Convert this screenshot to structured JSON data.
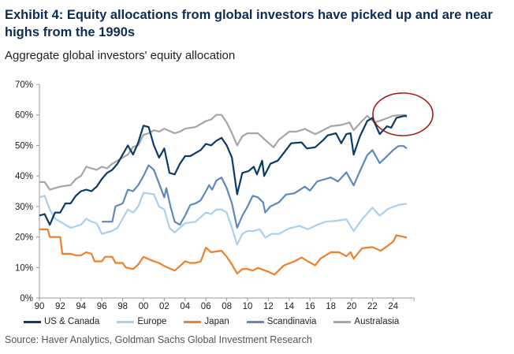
{
  "chart_data": {
    "type": "line",
    "title": "Exhibit 4: Equity allocations from global investors have picked up and are near highs from the 1990s",
    "subtitle": "Aggregate global investors' equity allocation",
    "xlabel": "",
    "ylabel": "",
    "xlim": [
      1990,
      2026
    ],
    "ylim": [
      0,
      70
    ],
    "x_ticks": [
      "90",
      "92",
      "94",
      "96",
      "98",
      "00",
      "02",
      "04",
      "06",
      "08",
      "10",
      "12",
      "14",
      "16",
      "18",
      "20",
      "22",
      "24"
    ],
    "y_ticks": [
      "0%",
      "10%",
      "20%",
      "30%",
      "40%",
      "50%",
      "60%",
      "70%"
    ],
    "grid": false,
    "legend_position": "bottom",
    "annotation": "circle around latest US & Canada and Australasia values near 60%",
    "series": [
      {
        "name": "US & Canada",
        "color": "#0b3a66",
        "points": [
          [
            1990,
            27
          ],
          [
            1990.5,
            27.5
          ],
          [
            1991,
            24
          ],
          [
            1991.5,
            28
          ],
          [
            1992,
            28
          ],
          [
            1992.5,
            31
          ],
          [
            1993,
            31
          ],
          [
            1993.5,
            33.5
          ],
          [
            1994,
            35
          ],
          [
            1994.5,
            35.5
          ],
          [
            1995,
            35
          ],
          [
            1995.5,
            36.5
          ],
          [
            1996,
            39
          ],
          [
            1996.5,
            41
          ],
          [
            1997,
            42
          ],
          [
            1997.5,
            44
          ],
          [
            1998,
            47
          ],
          [
            1998.5,
            50
          ],
          [
            1999,
            47
          ],
          [
            1999.5,
            51
          ],
          [
            2000,
            56.5
          ],
          [
            2000.5,
            56
          ],
          [
            2001,
            50
          ],
          [
            2001.5,
            46
          ],
          [
            2002,
            49
          ],
          [
            2002.5,
            41
          ],
          [
            2003,
            40.5
          ],
          [
            2003.5,
            44
          ],
          [
            2004,
            46.5
          ],
          [
            2004.5,
            46.5
          ],
          [
            2005,
            47.5
          ],
          [
            2005.5,
            48.5
          ],
          [
            2006,
            50.5
          ],
          [
            2006.5,
            50
          ],
          [
            2007,
            51.5
          ],
          [
            2007.5,
            52.5
          ],
          [
            2008,
            50
          ],
          [
            2008.5,
            46
          ],
          [
            2009,
            34
          ],
          [
            2009.5,
            41
          ],
          [
            2010.1,
            41.6
          ],
          [
            2010.6,
            43
          ],
          [
            2010.9,
            40.5
          ],
          [
            2011.4,
            45
          ],
          [
            2011.6,
            40
          ],
          [
            2012.2,
            44
          ],
          [
            2012.9,
            45
          ],
          [
            2013.7,
            48.5
          ],
          [
            2014.2,
            50.7
          ],
          [
            2015.2,
            51
          ],
          [
            2015.7,
            49
          ],
          [
            2016.5,
            49.4
          ],
          [
            2017.2,
            51.5
          ],
          [
            2017.7,
            53.3
          ],
          [
            2018.5,
            54
          ],
          [
            2019,
            50.7
          ],
          [
            2019.5,
            53.7
          ],
          [
            2019.9,
            54
          ],
          [
            2020.2,
            47
          ],
          [
            2020.8,
            53
          ],
          [
            2021.5,
            58
          ],
          [
            2022,
            59
          ],
          [
            2022.7,
            53.7
          ],
          [
            2023.4,
            56.3
          ],
          [
            2023.8,
            55.8
          ],
          [
            2024.3,
            59
          ],
          [
            2025.1,
            59.7
          ],
          [
            2025.3,
            59.5
          ]
        ]
      },
      {
        "name": "Europe",
        "color": "#a9d0ef",
        "points": [
          [
            1990,
            33
          ],
          [
            1990.5,
            33.5
          ],
          [
            1991,
            29
          ],
          [
            1991.5,
            26
          ],
          [
            1992,
            25
          ],
          [
            1992.5,
            24
          ],
          [
            1993,
            23
          ],
          [
            1994,
            24
          ],
          [
            1994.5,
            26
          ],
          [
            1995,
            25
          ],
          [
            1995.5,
            24.5
          ],
          [
            1996,
            21
          ],
          [
            1997,
            22
          ],
          [
            1997.5,
            23
          ],
          [
            1998,
            26
          ],
          [
            1998.5,
            29
          ],
          [
            1999,
            28
          ],
          [
            1999.5,
            30
          ],
          [
            2000,
            34.5
          ],
          [
            2001,
            34
          ],
          [
            2001.5,
            30
          ],
          [
            2002,
            29
          ],
          [
            2002.5,
            23
          ],
          [
            2003,
            21.5
          ],
          [
            2004,
            24.5
          ],
          [
            2005,
            25
          ],
          [
            2006,
            28
          ],
          [
            2006.5,
            27.5
          ],
          [
            2007,
            29
          ],
          [
            2007.5,
            29
          ],
          [
            2008,
            28
          ],
          [
            2008.5,
            23
          ],
          [
            2009,
            17.5
          ],
          [
            2009.5,
            21
          ],
          [
            2010,
            22
          ],
          [
            2010.5,
            21.9
          ],
          [
            2011.2,
            22.5
          ],
          [
            2011.7,
            19.8
          ],
          [
            2012.3,
            21
          ],
          [
            2013,
            21
          ],
          [
            2014,
            22.8
          ],
          [
            2015,
            23.6
          ],
          [
            2015.8,
            22.5
          ],
          [
            2016.7,
            24
          ],
          [
            2017.5,
            25
          ],
          [
            2018.5,
            25.3
          ],
          [
            2019.5,
            25.8
          ],
          [
            2020.2,
            21.9
          ],
          [
            2021,
            25.8
          ],
          [
            2022,
            29.6
          ],
          [
            2022.7,
            27
          ],
          [
            2023.5,
            29.2
          ],
          [
            2024.5,
            30.5
          ],
          [
            2025.3,
            30.9
          ]
        ]
      },
      {
        "name": "Japan",
        "color": "#f07f2a",
        "points": [
          [
            1990,
            22.5
          ],
          [
            1990.8,
            22.5
          ],
          [
            1991,
            20
          ],
          [
            1992,
            20
          ],
          [
            1992.2,
            14.5
          ],
          [
            1993,
            14.5
          ],
          [
            1993.5,
            14
          ],
          [
            1994,
            14
          ],
          [
            1994.5,
            15
          ],
          [
            1995,
            14.5
          ],
          [
            1995.3,
            12
          ],
          [
            1996,
            12
          ],
          [
            1996.3,
            13.5
          ],
          [
            1997,
            13.5
          ],
          [
            1997.3,
            11.5
          ],
          [
            1998,
            11.5
          ],
          [
            1998.3,
            10
          ],
          [
            1999,
            9.5
          ],
          [
            1999.5,
            11
          ],
          [
            2000,
            13.5
          ],
          [
            2001,
            12
          ],
          [
            2001.5,
            11.5
          ],
          [
            2002,
            10.5
          ],
          [
            2003,
            9
          ],
          [
            2003.5,
            10.5
          ],
          [
            2004,
            12
          ],
          [
            2004.5,
            11.5
          ],
          [
            2005,
            11.5
          ],
          [
            2005.5,
            12
          ],
          [
            2006,
            16.5
          ],
          [
            2006.5,
            15
          ],
          [
            2007.5,
            15.5
          ],
          [
            2008,
            13.5
          ],
          [
            2008.5,
            11
          ],
          [
            2009,
            8
          ],
          [
            2009.5,
            9.5
          ],
          [
            2010,
            9.5
          ],
          [
            2010.5,
            9
          ],
          [
            2011,
            9.9
          ],
          [
            2012,
            8.6
          ],
          [
            2012.6,
            7.7
          ],
          [
            2013.5,
            10.7
          ],
          [
            2014.5,
            12
          ],
          [
            2015.2,
            13.3
          ],
          [
            2015.8,
            12
          ],
          [
            2016.5,
            10.7
          ],
          [
            2017,
            12.9
          ],
          [
            2018,
            15
          ],
          [
            2018.8,
            15
          ],
          [
            2019.5,
            13.7
          ],
          [
            2019.9,
            15
          ],
          [
            2020.2,
            12.9
          ],
          [
            2021,
            16.3
          ],
          [
            2022,
            16.7
          ],
          [
            2022.8,
            15.5
          ],
          [
            2023.5,
            17.2
          ],
          [
            2024,
            18.5
          ],
          [
            2024.3,
            20.6
          ],
          [
            2024.8,
            20.2
          ],
          [
            2025.3,
            19.8
          ]
        ]
      },
      {
        "name": "Scandinavia",
        "color": "#5e88be",
        "points": [
          [
            1996,
            25
          ],
          [
            1997,
            25
          ],
          [
            1997.3,
            30
          ],
          [
            1998,
            31
          ],
          [
            1998.5,
            35.5
          ],
          [
            1999,
            35
          ],
          [
            1999.5,
            37
          ],
          [
            2000,
            40
          ],
          [
            2000.5,
            43.5
          ],
          [
            2001,
            42
          ],
          [
            2001.5,
            37.5
          ],
          [
            2002,
            33
          ],
          [
            2002.2,
            36
          ],
          [
            2002.6,
            30
          ],
          [
            2003,
            25
          ],
          [
            2003.5,
            24
          ],
          [
            2004,
            27
          ],
          [
            2004.5,
            30.5
          ],
          [
            2005,
            31
          ],
          [
            2005.5,
            32
          ],
          [
            2006,
            35
          ],
          [
            2006.3,
            37
          ],
          [
            2006.6,
            35.5
          ],
          [
            2007,
            38.5
          ],
          [
            2007.5,
            39.5
          ],
          [
            2008,
            36
          ],
          [
            2008.5,
            31
          ],
          [
            2009,
            23
          ],
          [
            2009.5,
            27
          ],
          [
            2010,
            30
          ],
          [
            2010.5,
            33.5
          ],
          [
            2011,
            33
          ],
          [
            2011.5,
            31.3
          ],
          [
            2011.7,
            28
          ],
          [
            2012.2,
            30
          ],
          [
            2013,
            31.3
          ],
          [
            2013.7,
            33.9
          ],
          [
            2014.5,
            34.3
          ],
          [
            2015.5,
            36.5
          ],
          [
            2016,
            35.2
          ],
          [
            2016.7,
            38.2
          ],
          [
            2017.5,
            39
          ],
          [
            2018,
            39.5
          ],
          [
            2018.7,
            38.2
          ],
          [
            2019.5,
            41.2
          ],
          [
            2020.2,
            36.9
          ],
          [
            2020.8,
            41.6
          ],
          [
            2021.5,
            46.8
          ],
          [
            2022,
            48.5
          ],
          [
            2022.7,
            44.2
          ],
          [
            2023.5,
            46.8
          ],
          [
            2024,
            48.5
          ],
          [
            2024.5,
            49.8
          ],
          [
            2025,
            49.8
          ],
          [
            2025.3,
            49
          ]
        ]
      },
      {
        "name": "Australasia",
        "color": "#a6a6a6",
        "points": [
          [
            1990,
            38
          ],
          [
            1990.5,
            38
          ],
          [
            1991,
            35.5
          ],
          [
            1992,
            36.5
          ],
          [
            1993,
            37
          ],
          [
            1993.5,
            39
          ],
          [
            1994,
            40
          ],
          [
            1994.5,
            43
          ],
          [
            1995,
            42.5
          ],
          [
            1995.5,
            42
          ],
          [
            1996,
            43
          ],
          [
            1996.5,
            42.5
          ],
          [
            1997,
            44
          ],
          [
            1998,
            46
          ],
          [
            1998.5,
            47
          ],
          [
            1999,
            49.5
          ],
          [
            1999.5,
            50
          ],
          [
            2000,
            53.5
          ],
          [
            2000.5,
            54
          ],
          [
            2001,
            55
          ],
          [
            2001.5,
            54.5
          ],
          [
            2002,
            55.5
          ],
          [
            2003,
            54
          ],
          [
            2003.5,
            54.5
          ],
          [
            2004,
            55.5
          ],
          [
            2005,
            56
          ],
          [
            2006,
            58
          ],
          [
            2006.5,
            58.5
          ],
          [
            2007,
            60
          ],
          [
            2007.5,
            60
          ],
          [
            2008,
            57.5
          ],
          [
            2008.5,
            54
          ],
          [
            2009,
            50
          ],
          [
            2009.5,
            53
          ],
          [
            2010,
            54
          ],
          [
            2011,
            54
          ],
          [
            2011.5,
            52.4
          ],
          [
            2012.5,
            49.4
          ],
          [
            2013,
            51.8
          ],
          [
            2014,
            54.5
          ],
          [
            2014.7,
            54.5
          ],
          [
            2015.5,
            55.4
          ],
          [
            2016.5,
            53.7
          ],
          [
            2017,
            54.5
          ],
          [
            2018,
            56.3
          ],
          [
            2019,
            56.7
          ],
          [
            2019.8,
            57.5
          ],
          [
            2020.2,
            55
          ],
          [
            2021,
            58
          ],
          [
            2021.5,
            59.7
          ],
          [
            2022.2,
            57.5
          ],
          [
            2023,
            58.4
          ],
          [
            2024,
            59.7
          ],
          [
            2025,
            60
          ],
          [
            2025.3,
            59.8
          ]
        ]
      }
    ],
    "source": "Source: Haver Analytics, Goldman Sachs Global Investment Research"
  }
}
